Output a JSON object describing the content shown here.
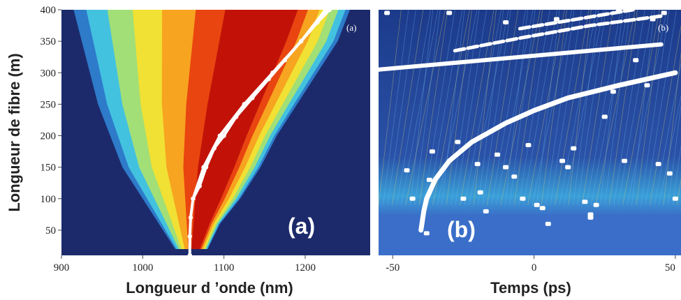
{
  "chart_data": [
    {
      "type": "heatmap",
      "panel": "a",
      "panel_label_big": "(a)",
      "panel_label_small": "(a)",
      "xlabel": "Longueur d ’onde (nm)",
      "ylabel": "Longueur de fibre (m)",
      "xlim": [
        900,
        1280
      ],
      "ylim": [
        10,
        400
      ],
      "x_ticks": [
        "900",
        "1000",
        "1100",
        "1200"
      ],
      "y_ticks": [
        "50",
        "100",
        "150",
        "200",
        "250",
        "300",
        "350",
        "400"
      ],
      "grid": false,
      "colormap": [
        "#1c2a6b",
        "#2f7fd0",
        "#44c6e0",
        "#a8e070",
        "#f4e030",
        "#f7a020",
        "#e84010",
        "#c01008"
      ],
      "background_color": "#1c2a6b",
      "spectral_envelope": {
        "fiber_length_m": [
          20,
          60,
          100,
          150,
          200,
          250,
          300,
          350,
          400
        ],
        "short_edge_nm": [
          1040,
          1020,
          1000,
          975,
          960,
          945,
          935,
          925,
          915
        ],
        "long_edge_nm": [
          1080,
          1095,
          1120,
          1145,
          1165,
          1190,
          1215,
          1240,
          1255
        ]
      },
      "white_trace": {
        "fiber_length_m": [
          10,
          40,
          70,
          100,
          120,
          150,
          180,
          200,
          230,
          260,
          290,
          320,
          350,
          380,
          400
        ],
        "wavelength_nm": [
          1058,
          1058,
          1059,
          1062,
          1070,
          1078,
          1088,
          1100,
          1115,
          1135,
          1155,
          1175,
          1195,
          1215,
          1230
        ]
      },
      "white_trace_2": {
        "fiber_length_m": [
          100,
          150,
          200,
          250,
          300,
          350,
          400
        ],
        "wavelength_nm": [
          1062,
          1075,
          1095,
          1125,
          1160,
          1195,
          1225
        ]
      }
    },
    {
      "type": "heatmap",
      "panel": "b",
      "panel_label_big": "(b)",
      "panel_label_small": "(b)",
      "xlabel": "Temps (ps)",
      "ylabel": "",
      "xlim": [
        -55,
        52
      ],
      "ylim": [
        10,
        400
      ],
      "x_ticks": [
        "-50",
        "0",
        "50"
      ],
      "grid": false,
      "background_color": "#1c3a8a",
      "bright_band_color": "#3a6ec8",
      "white_curve": {
        "fiber_length_m": [
          50,
          80,
          100,
          130,
          160,
          190,
          220,
          240,
          260,
          280,
          300
        ],
        "time_ps": [
          -40,
          -39,
          -38,
          -35,
          -30,
          -22,
          -10,
          0,
          12,
          30,
          50
        ]
      },
      "upper_white_line": {
        "fiber_length_m": [
          305,
          315,
          325,
          335,
          345
        ],
        "time_ps": [
          -55,
          -30,
          -5,
          20,
          45
        ]
      },
      "upper_white_line_2": {
        "fiber_length_m": [
          335,
          355,
          375,
          390
        ],
        "time_ps": [
          -28,
          -5,
          20,
          45
        ]
      },
      "upper_white_line_3": {
        "fiber_length_m": [
          370,
          385,
          400
        ],
        "time_ps": [
          -5,
          15,
          35
        ]
      },
      "scattered_points": [
        {
          "t": -45,
          "z": 145
        },
        {
          "t": -43,
          "z": 100
        },
        {
          "t": -37,
          "z": 130
        },
        {
          "t": -36,
          "z": 175
        },
        {
          "t": -27,
          "z": 190
        },
        {
          "t": -25,
          "z": 100
        },
        {
          "t": -20,
          "z": 155
        },
        {
          "t": -19,
          "z": 110
        },
        {
          "t": -17,
          "z": 80
        },
        {
          "t": -13,
          "z": 170
        },
        {
          "t": -10,
          "z": 150
        },
        {
          "t": -7,
          "z": 135
        },
        {
          "t": -4,
          "z": 100
        },
        {
          "t": -2,
          "z": 185
        },
        {
          "t": 1,
          "z": 90
        },
        {
          "t": 3,
          "z": 85
        },
        {
          "t": 5,
          "z": 60
        },
        {
          "t": 10,
          "z": 160
        },
        {
          "t": 12,
          "z": 150
        },
        {
          "t": 14,
          "z": 180
        },
        {
          "t": 18,
          "z": 95
        },
        {
          "t": 20,
          "z": 70
        },
        {
          "t": 22,
          "z": 90
        },
        {
          "t": 25,
          "z": 230
        },
        {
          "t": 28,
          "z": 270
        },
        {
          "t": 32,
          "z": 160
        },
        {
          "t": 36,
          "z": 320
        },
        {
          "t": 40,
          "z": 280
        },
        {
          "t": 42,
          "z": 385
        },
        {
          "t": 44,
          "z": 155
        },
        {
          "t": 48,
          "z": 140
        },
        {
          "t": 50,
          "z": 100
        },
        {
          "t": -38,
          "z": 45
        },
        {
          "t": 20,
          "z": 75
        },
        {
          "t": -52,
          "z": 395
        },
        {
          "t": -30,
          "z": 395
        },
        {
          "t": -10,
          "z": 380
        },
        {
          "t": 8,
          "z": 385
        },
        {
          "t": 30,
          "z": 400
        },
        {
          "t": 46,
          "z": 395
        }
      ]
    }
  ]
}
